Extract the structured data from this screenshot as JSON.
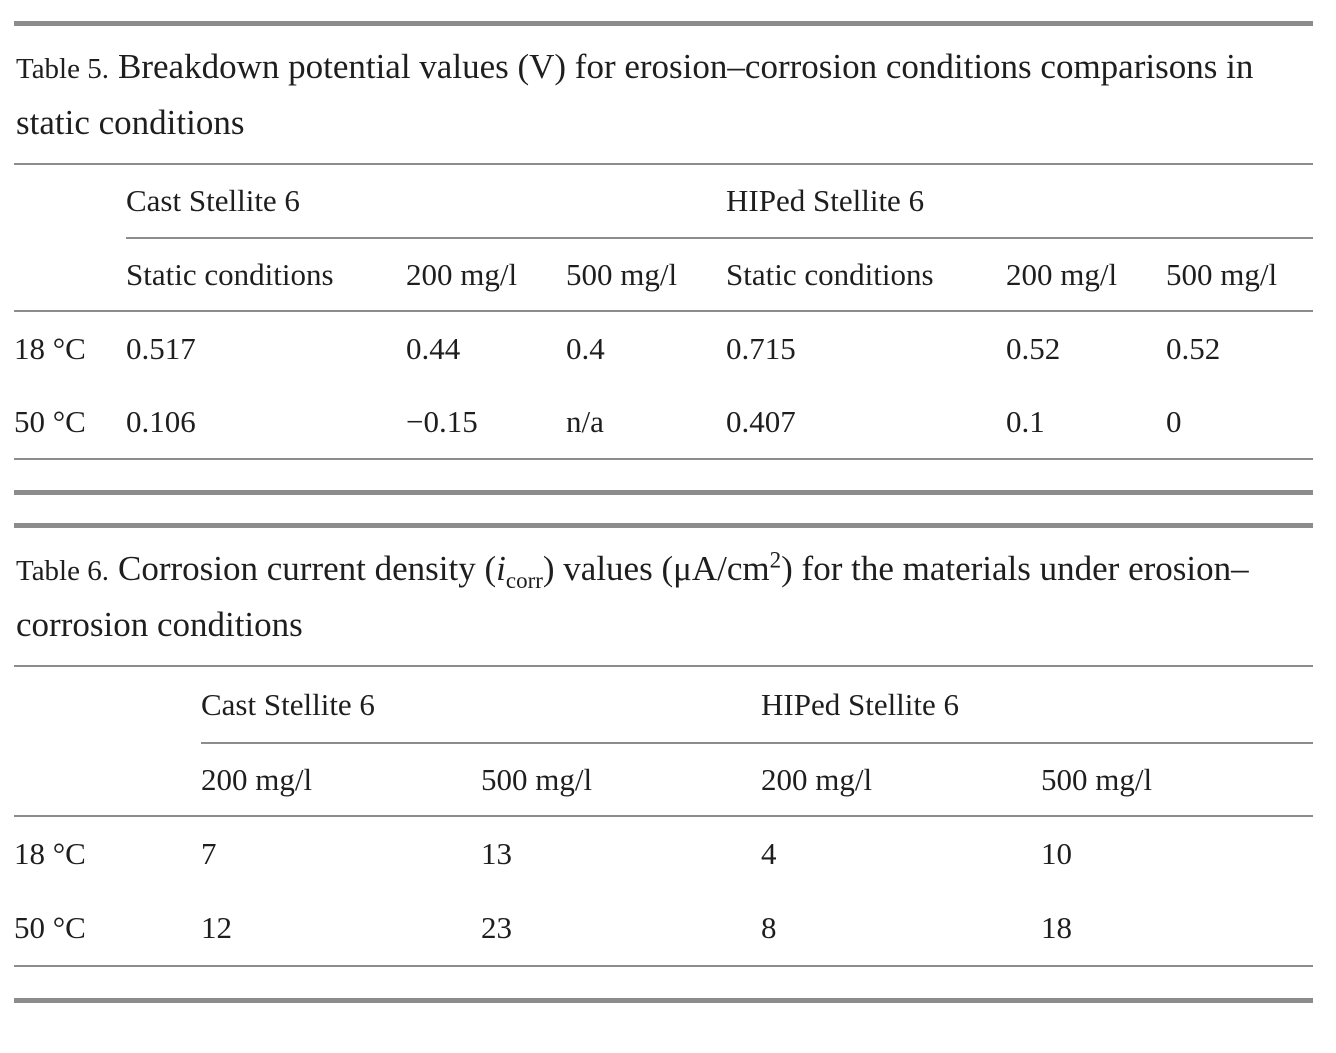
{
  "page": {
    "background": "#ffffff",
    "text_color": "#1e1e1e",
    "rule_color": "#8c8c8c"
  },
  "table5": {
    "label": "Table 5.",
    "caption": "Breakdown potential values (V) for erosion–corrosion conditions comparisons in static conditions",
    "groups": [
      "Cast Stellite 6",
      "HIPed Stellite 6"
    ],
    "columns": [
      "Static conditions",
      "200 mg/l",
      "500 mg/l",
      "Static conditions",
      "200 mg/l",
      "500 mg/l"
    ],
    "rows": [
      {
        "label": "18 °C",
        "values": [
          "0.517",
          "0.44",
          "0.4",
          "0.715",
          "0.52",
          "0.52"
        ]
      },
      {
        "label": "50 °C",
        "values": [
          "0.106",
          "−0.15",
          "n/a",
          "0.407",
          "0.1",
          "0"
        ]
      }
    ]
  },
  "table6": {
    "label": "Table 6.",
    "caption_parts": [
      {
        "t": "Corrosion current density ("
      },
      {
        "t": "i"
      },
      {
        "t": "corr"
      },
      {
        "t": ") values (μA/cm"
      },
      {
        "t": "2"
      },
      {
        "t": ") for the materials under erosion–corrosion conditions"
      }
    ],
    "groups": [
      "Cast Stellite 6",
      "HIPed Stellite 6"
    ],
    "columns": [
      "200 mg/l",
      "500 mg/l",
      "200 mg/l",
      "500 mg/l"
    ],
    "rows": [
      {
        "label": "18 °C",
        "values": [
          "7",
          "13",
          "4",
          "10"
        ]
      },
      {
        "label": "50 °C",
        "values": [
          "12",
          "23",
          "8",
          "18"
        ]
      }
    ]
  }
}
